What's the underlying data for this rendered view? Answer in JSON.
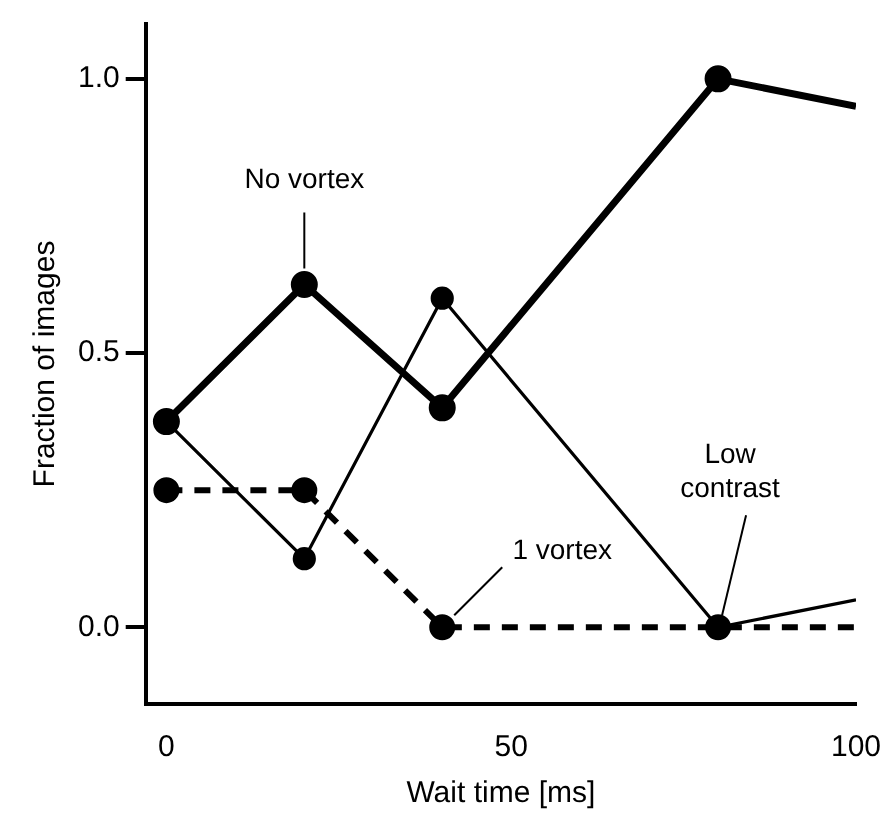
{
  "chart_data": {
    "type": "line",
    "xlabel": "Wait time [ms]",
    "ylabel": "Fraction of images",
    "x": [
      0,
      20,
      40,
      80,
      100
    ],
    "xlim": [
      -3,
      100
    ],
    "xticks": [
      0,
      50,
      100
    ],
    "ylim": [
      -0.14,
      1.1
    ],
    "yticks": [
      {
        "value": 0,
        "label": "0.0"
      },
      {
        "value": 0.5,
        "label": "0.5"
      },
      {
        "value": 1,
        "label": "1.0"
      }
    ],
    "grid": false,
    "legend": false,
    "marker": "circle",
    "series": [
      {
        "name": "No vortex",
        "color": "#000000",
        "values": [
          0.375,
          0.625,
          0.4,
          1.0,
          0.95
        ],
        "line_style": "solid"
      },
      {
        "name": "Low contrast",
        "color": "#000000",
        "values": [
          0.375,
          0.125,
          0.6,
          0.0,
          0.05
        ],
        "line_style": "solid"
      },
      {
        "name": "1 vortex",
        "color": "#000000",
        "values": [
          0.25,
          0.25,
          0.0,
          0.0,
          0.0
        ],
        "line_style": "dashed"
      }
    ]
  }
}
